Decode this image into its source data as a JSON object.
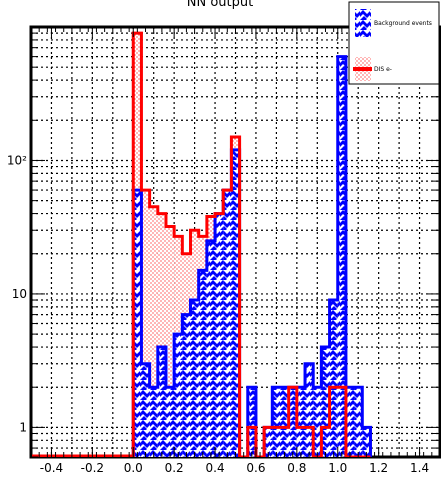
{
  "chart_data": {
    "type": "bar",
    "title": "NN output",
    "xlabel": "",
    "ylabel": "",
    "xlim": [
      -0.5,
      1.5
    ],
    "ylog": true,
    "ylim": [
      0.6,
      1000
    ],
    "grid": true,
    "x_ticks": [
      "-0.4",
      "-0.2",
      "0.0",
      "0.2",
      "0.4",
      "0.6",
      "0.8",
      "1.0",
      "1.2",
      "1.4"
    ],
    "x_tick_values": [
      -0.4,
      -0.2,
      0.0,
      0.2,
      0.4,
      0.6,
      0.8,
      1.0,
      1.2,
      1.4
    ],
    "y_ticks": [
      "1",
      "10",
      "10²"
    ],
    "y_tick_values": [
      1,
      10,
      100
    ],
    "legend": {
      "position": "top-right"
    },
    "bin_width": 0.04,
    "series": [
      {
        "name": "Background events",
        "color": "#0000ff",
        "values": [
          {
            "x": 0.0,
            "y": 60
          },
          {
            "x": 0.04,
            "y": 3
          },
          {
            "x": 0.08,
            "y": 2
          },
          {
            "x": 0.12,
            "y": 4
          },
          {
            "x": 0.16,
            "y": 2
          },
          {
            "x": 0.2,
            "y": 5
          },
          {
            "x": 0.24,
            "y": 7
          },
          {
            "x": 0.28,
            "y": 9
          },
          {
            "x": 0.32,
            "y": 15
          },
          {
            "x": 0.36,
            "y": 25
          },
          {
            "x": 0.4,
            "y": 40
          },
          {
            "x": 0.44,
            "y": 60
          },
          {
            "x": 0.48,
            "y": 120
          },
          {
            "x": 0.52,
            "y": 0
          },
          {
            "x": 0.56,
            "y": 2
          },
          {
            "x": 0.6,
            "y": 0
          },
          {
            "x": 0.64,
            "y": 1
          },
          {
            "x": 0.68,
            "y": 2
          },
          {
            "x": 0.72,
            "y": 2
          },
          {
            "x": 0.76,
            "y": 2
          },
          {
            "x": 0.8,
            "y": 2
          },
          {
            "x": 0.84,
            "y": 3
          },
          {
            "x": 0.88,
            "y": 2
          },
          {
            "x": 0.92,
            "y": 4
          },
          {
            "x": 0.96,
            "y": 9
          },
          {
            "x": 1.0,
            "y": 600
          },
          {
            "x": 1.04,
            "y": 2
          },
          {
            "x": 1.08,
            "y": 2
          },
          {
            "x": 1.12,
            "y": 1
          }
        ]
      },
      {
        "name": "DIS e-",
        "color": "#ff0000",
        "values": [
          {
            "x": 0.0,
            "y": 900
          },
          {
            "x": 0.04,
            "y": 60
          },
          {
            "x": 0.08,
            "y": 45
          },
          {
            "x": 0.12,
            "y": 40
          },
          {
            "x": 0.16,
            "y": 32
          },
          {
            "x": 0.2,
            "y": 27
          },
          {
            "x": 0.24,
            "y": 20
          },
          {
            "x": 0.28,
            "y": 30
          },
          {
            "x": 0.32,
            "y": 27
          },
          {
            "x": 0.36,
            "y": 38
          },
          {
            "x": 0.4,
            "y": 40
          },
          {
            "x": 0.44,
            "y": 60
          },
          {
            "x": 0.48,
            "y": 150
          },
          {
            "x": 0.52,
            "y": 0
          },
          {
            "x": 0.56,
            "y": 1
          },
          {
            "x": 0.6,
            "y": 0
          },
          {
            "x": 0.64,
            "y": 1
          },
          {
            "x": 0.68,
            "y": 1
          },
          {
            "x": 0.72,
            "y": 1
          },
          {
            "x": 0.76,
            "y": 2
          },
          {
            "x": 0.8,
            "y": 1
          },
          {
            "x": 0.84,
            "y": 1
          },
          {
            "x": 0.88,
            "y": 0
          },
          {
            "x": 0.92,
            "y": 1
          },
          {
            "x": 0.96,
            "y": 2
          },
          {
            "x": 1.0,
            "y": 2
          },
          {
            "x": 1.04,
            "y": 0
          },
          {
            "x": 1.08,
            "y": 0
          },
          {
            "x": 1.12,
            "y": 0
          }
        ]
      }
    ]
  }
}
